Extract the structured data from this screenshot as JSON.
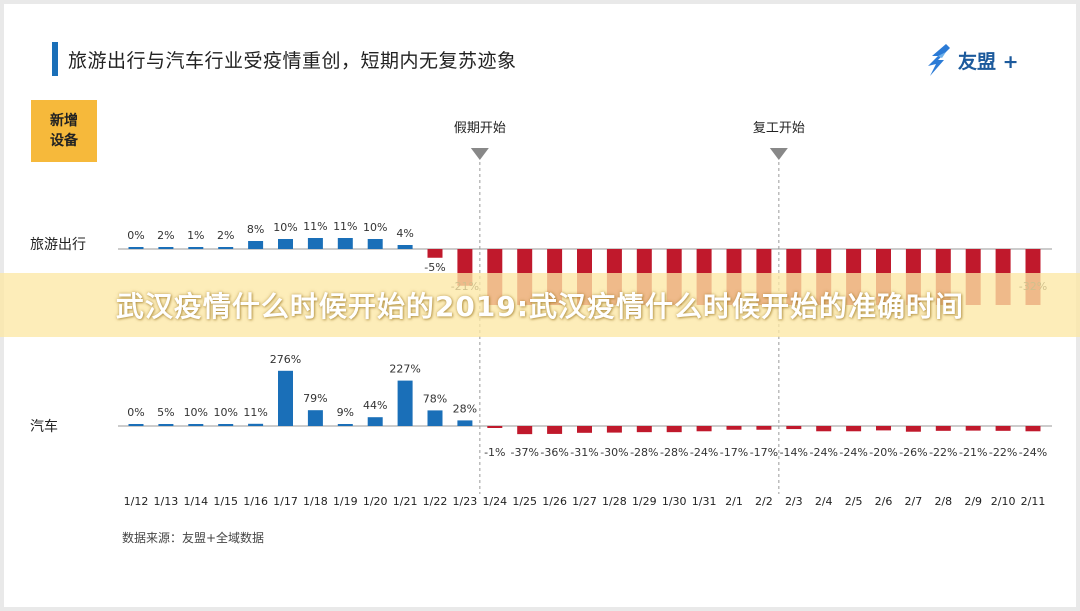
{
  "slide": {
    "title": "旅游出行与汽车行业受疫情重创，短期内无复苏迹象",
    "brand": "友盟 +",
    "badge": "新增\n设备",
    "source": "数据来源：友盟+全域数据"
  },
  "banner": {
    "text": "武汉疫情什么时候开始的2019:武汉疫情什么时候开始的准确时间"
  },
  "colors": {
    "positive": "#1a6fb8",
    "negative": "#c0192c",
    "negative_light": "#e67e22",
    "title_bar": "#1a6fb8",
    "badge": "#f6b93b"
  },
  "icons": {
    "brand_logo": "umeng-bird-icon"
  },
  "chart_data": {
    "type": "bar",
    "categories": [
      "1/12",
      "1/13",
      "1/14",
      "1/15",
      "1/16",
      "1/17",
      "1/18",
      "1/19",
      "1/20",
      "1/21",
      "1/22",
      "1/23",
      "1/24",
      "1/25",
      "1/26",
      "1/27",
      "1/28",
      "1/29",
      "1/30",
      "1/31",
      "2/1",
      "2/2",
      "2/3",
      "2/4",
      "2/5",
      "2/6",
      "2/7",
      "2/8",
      "2/9",
      "2/10",
      "2/11"
    ],
    "series": [
      {
        "name": "旅游出行",
        "unit": "%",
        "values": [
          0,
          2,
          1,
          2,
          8,
          10,
          11,
          11,
          10,
          4,
          -5,
          -21,
          null,
          null,
          null,
          null,
          null,
          null,
          null,
          null,
          null,
          null,
          null,
          null,
          null,
          null,
          null,
          null,
          null,
          null,
          -32
        ]
      },
      {
        "name": "汽车",
        "unit": "%",
        "values": [
          0,
          5,
          10,
          10,
          11,
          276,
          79,
          9,
          44,
          227,
          78,
          28,
          -1,
          -37,
          -36,
          -31,
          -30,
          -28,
          -28,
          -24,
          -17,
          -17,
          -14,
          -24,
          -24,
          -20,
          -26,
          -22,
          -21,
          -22,
          -24
        ]
      }
    ],
    "annotations": [
      {
        "label": "假期开始",
        "category": "1/24"
      },
      {
        "label": "复工开始",
        "category": "2/3"
      }
    ]
  }
}
